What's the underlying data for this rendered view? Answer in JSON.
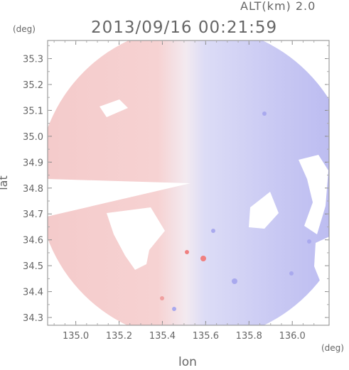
{
  "header": {
    "altitude": "ALT(km)  2.0",
    "timestamp": "2013/09/16  00:21:59"
  },
  "units": {
    "y_unit": "(deg)",
    "x_unit": "(deg)"
  },
  "axes": {
    "xlabel": "lon",
    "ylabel": "lat",
    "xticks": [
      "135.0",
      "135.2",
      "135.4",
      "135.6",
      "135.8",
      "136.0"
    ],
    "yticks": [
      "34.3",
      "34.4",
      "34.5",
      "34.6",
      "34.7",
      "34.8",
      "34.9",
      "35.0",
      "35.1",
      "35.2",
      "35.3"
    ],
    "xlim": [
      134.87,
      136.17
    ],
    "ylim": [
      34.27,
      35.37
    ]
  },
  "colors": {
    "frame": "#888888",
    "outward_light": "#f6dede",
    "outward": "#f2c6c6",
    "inward_light": "#e3e3f7",
    "inward": "#c7c7f2",
    "inward_strong": "#a9a9ee",
    "outward_strong": "#f08080"
  }
}
